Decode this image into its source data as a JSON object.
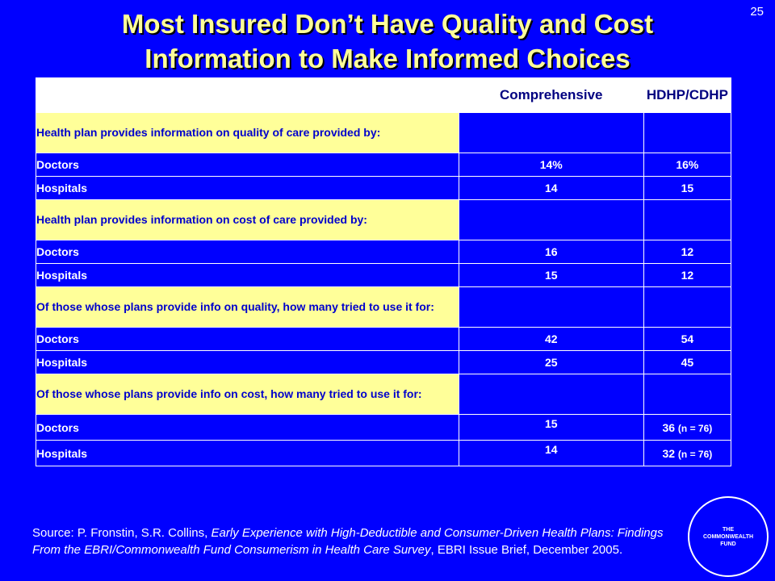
{
  "slide_number": "25",
  "title_line1": "Most Insured Don’t Have Quality and Cost",
  "title_line2": "Information to Make Informed Choices",
  "table": {
    "headers": [
      "",
      "Comprehensive",
      "HDHP/CDHP"
    ],
    "sections": [
      {
        "label": "Health plan provides information on quality of care provided by:",
        "rows": [
          {
            "label": "Doctors",
            "comprehensive": "14%",
            "hdhp": "16%",
            "hdhp_note": ""
          },
          {
            "label": "Hospitals",
            "comprehensive": "14",
            "hdhp": "15",
            "hdhp_note": ""
          }
        ]
      },
      {
        "label": "Health plan provides information on cost of care provided by:",
        "rows": [
          {
            "label": "Doctors",
            "comprehensive": "16",
            "hdhp": "12",
            "hdhp_note": ""
          },
          {
            "label": "Hospitals",
            "comprehensive": "15",
            "hdhp": "12",
            "hdhp_note": ""
          }
        ]
      },
      {
        "label": "Of those whose plans provide info on quality, how many tried to use it for:",
        "rows": [
          {
            "label": "Doctors",
            "comprehensive": "42",
            "hdhp": "54",
            "hdhp_note": ""
          },
          {
            "label": "Hospitals",
            "comprehensive": "25",
            "hdhp": "45",
            "hdhp_note": ""
          }
        ]
      },
      {
        "label": "Of those whose plans provide info on cost, how many tried to use it for:",
        "rows": [
          {
            "label": "Doctors",
            "comprehensive": "15",
            "hdhp": "36 ",
            "hdhp_note": "(n = 76)"
          },
          {
            "label": "Hospitals",
            "comprehensive": "14",
            "hdhp": "32 ",
            "hdhp_note": "(n = 76)"
          }
        ]
      }
    ]
  },
  "source": {
    "prefix": "Source: P. Fronstin, S.R. Collins, ",
    "title_italic": "Early Experience with High-Deductible and Consumer-Driven Health Plans: Findings From the EBRI/Commonwealth Fund Consumerism in Health Care Survey",
    "suffix": ", EBRI Issue Brief, December 2005."
  },
  "logo": {
    "line1": "THE",
    "line2": "COMMONWEALTH",
    "line3": "FUND"
  },
  "colors": {
    "background": "#0000FF",
    "title": "#FFFF99",
    "section_fill": "#FFFF99",
    "header_fill": "#FFFFFF"
  }
}
